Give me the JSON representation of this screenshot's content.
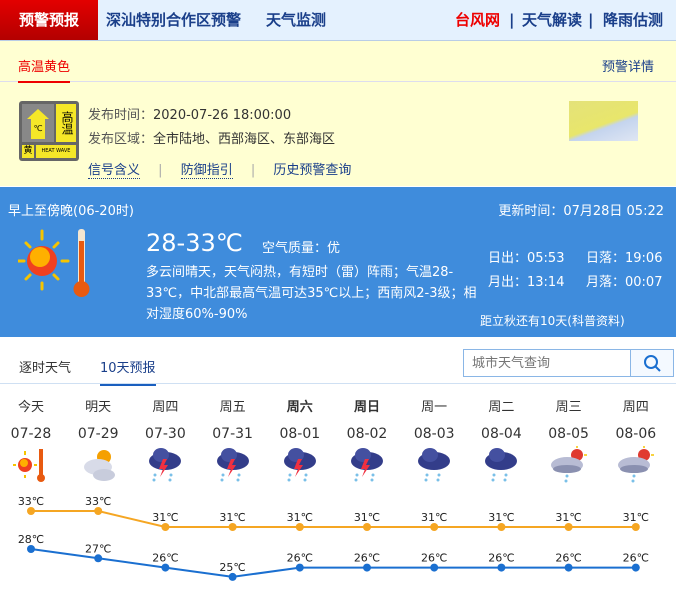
{
  "nav": {
    "items": [
      "预警预报",
      "深汕特别合作区预警",
      "天气监测"
    ],
    "right": [
      "台风网",
      "天气解读",
      "降雨估测"
    ]
  },
  "warning": {
    "tab": "高温黄色",
    "detail_link": "预警详情",
    "time_label": "发布时间：",
    "time": "2020-07-26 18:00:00",
    "area_label": "发布区域：",
    "area": "全市陆地、西部海区、东部海区",
    "links": [
      "信号含义",
      "防御指引",
      "历史预警查询"
    ],
    "badge": {
      "title": "高温",
      "level": "黄",
      "en": "HEAT WAVE",
      "unit": "℃"
    }
  },
  "today": {
    "period": "早上至傍晚(06-20时)",
    "update": "更新时间：07月28日 05:22",
    "temp": "28-33℃",
    "aqi_label": "空气质量：",
    "aqi": "优",
    "desc": "多云间晴天，天气闷热，有短时（雷）阵雨；气温28-33℃，中北部最高气温可达35℃以上；西南风2-3级；相对湿度60%-90%",
    "sunrise": "日出：05:53",
    "sunset": "日落：19:06",
    "moonrise": "月出：13:14",
    "moonset": "月落：00:07",
    "solar_term": "距立秋还有10天(科普资料)"
  },
  "tabs": {
    "items": [
      "逐时天气",
      "10天预报"
    ],
    "active": 1,
    "search_placeholder": "城市天气查询"
  },
  "forecast": {
    "days": [
      {
        "day": "今天",
        "date": "07-28",
        "icon": "sunny-hot",
        "bold": false
      },
      {
        "day": "明天",
        "date": "07-29",
        "icon": "partly-cloudy",
        "bold": false
      },
      {
        "day": "周四",
        "date": "07-30",
        "icon": "thunderstorm",
        "bold": false
      },
      {
        "day": "周五",
        "date": "07-31",
        "icon": "thunderstorm",
        "bold": false
      },
      {
        "day": "周六",
        "date": "08-01",
        "icon": "thunderstorm",
        "bold": true
      },
      {
        "day": "周日",
        "date": "08-02",
        "icon": "thunderstorm",
        "bold": true
      },
      {
        "day": "周一",
        "date": "08-03",
        "icon": "rain",
        "bold": false
      },
      {
        "day": "周二",
        "date": "08-04",
        "icon": "rain",
        "bold": false
      },
      {
        "day": "周三",
        "date": "08-05",
        "icon": "sun-shower",
        "bold": false
      },
      {
        "day": "周四",
        "date": "08-06",
        "icon": "sun-shower",
        "bold": false
      }
    ]
  },
  "chart_data": {
    "type": "line",
    "categories": [
      "07-28",
      "07-29",
      "07-30",
      "07-31",
      "08-01",
      "08-02",
      "08-03",
      "08-04",
      "08-05",
      "08-06"
    ],
    "unit": "℃",
    "series": [
      {
        "values": [
          33,
          33,
          31,
          31,
          31,
          31,
          31,
          31,
          31,
          31
        ],
        "color": "#f5a623"
      },
      {
        "values": [
          28,
          27,
          26,
          25,
          26,
          26,
          26,
          26,
          26,
          26
        ],
        "color": "#1a6fd0"
      }
    ]
  }
}
